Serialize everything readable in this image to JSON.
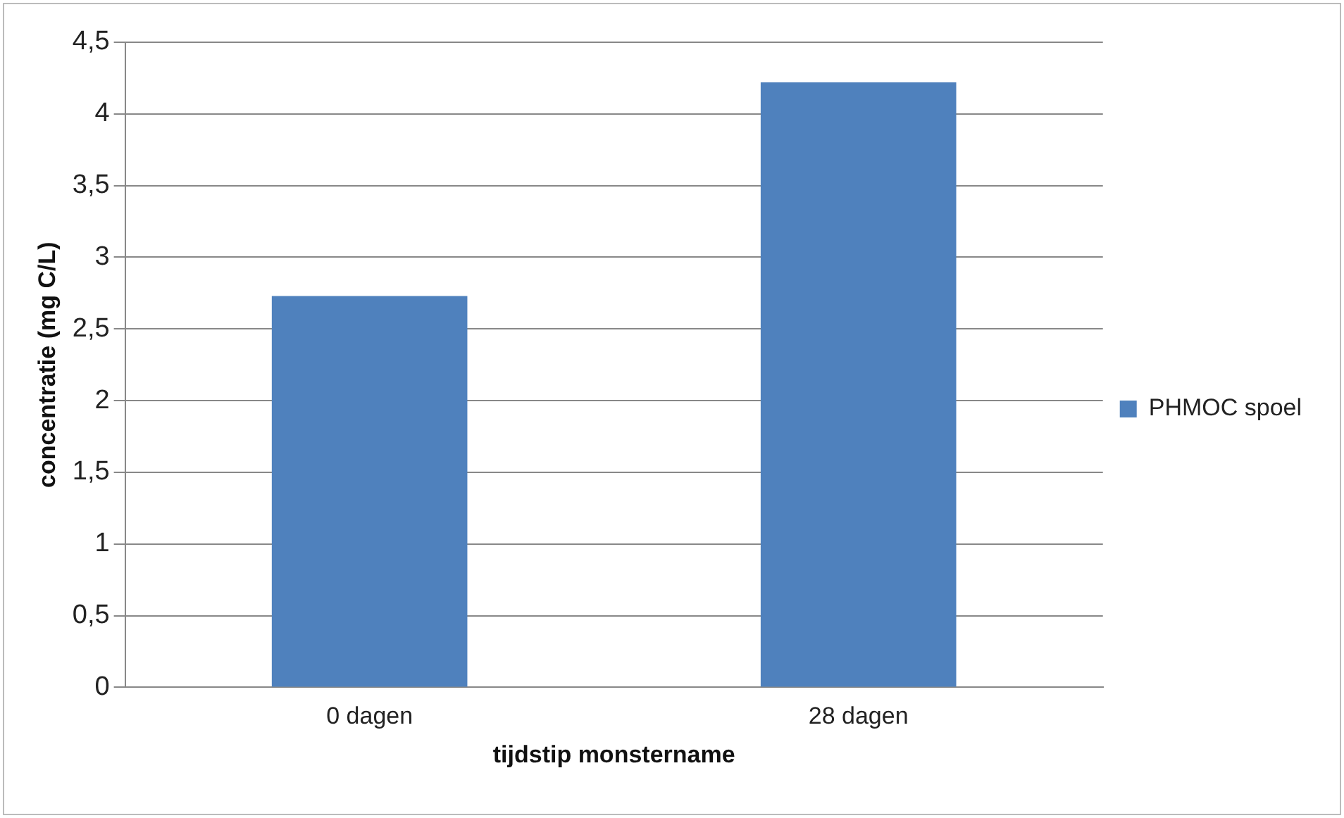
{
  "chart_data": {
    "type": "bar",
    "xlabel": "tijdstip monstername",
    "ylabel": "concentratie (mg C/L)",
    "categories": [
      "0 dagen",
      "28 dagen"
    ],
    "series": [
      {
        "name": "PHMOC spoel",
        "color": "#4f81bd",
        "values": [
          2.73,
          4.22
        ]
      }
    ],
    "ylim": [
      0,
      4.5
    ],
    "yticks": [
      0,
      {
        "value": 0.5,
        "label": "0,5"
      },
      1,
      {
        "value": 1.5,
        "label": "1,5"
      },
      2,
      {
        "value": 2.5,
        "label": "2,5"
      },
      3,
      {
        "value": 3.5,
        "label": "3,5"
      },
      4,
      {
        "value": 4.5,
        "label": "4,5"
      }
    ],
    "grid": "y",
    "legend": "right"
  }
}
